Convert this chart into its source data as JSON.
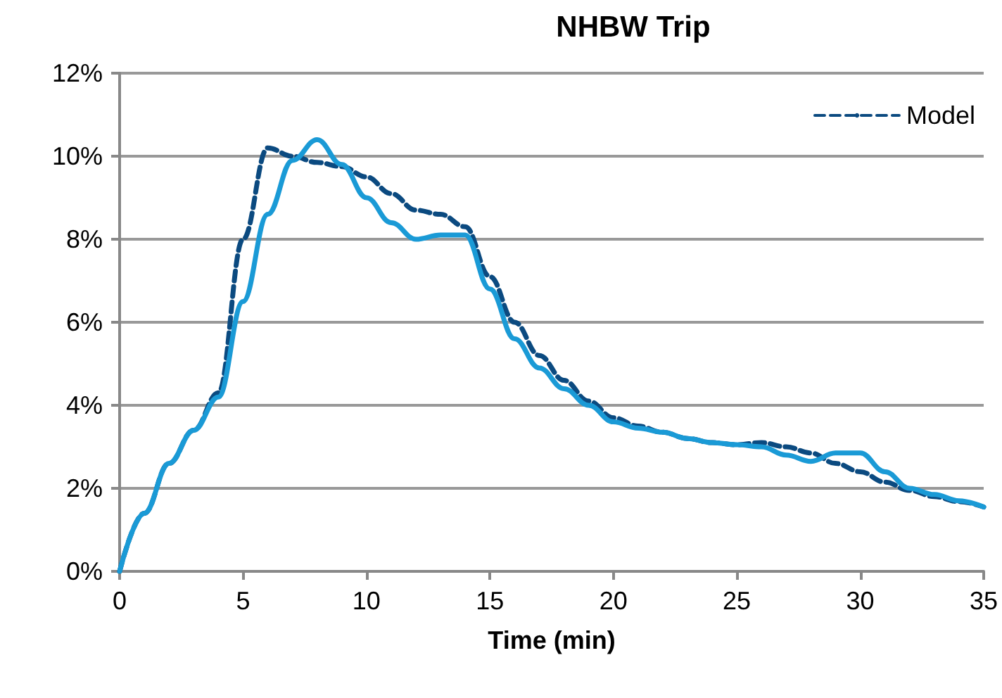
{
  "chart_data": {
    "type": "line",
    "title": "NHBW Trip",
    "xlabel": "Time (min)",
    "x": [
      0,
      1,
      2,
      3,
      4,
      5,
      6,
      7,
      8,
      9,
      10,
      11,
      12,
      13,
      14,
      15,
      16,
      17,
      18,
      19,
      20,
      21,
      22,
      23,
      24,
      25,
      26,
      27,
      28,
      29,
      30,
      31,
      32,
      33,
      34,
      35
    ],
    "series": [
      {
        "color": "#1a9ad6",
        "line_style": "solid",
        "values": [
          0,
          1.4,
          2.6,
          3.4,
          4.2,
          6.5,
          8.6,
          9.9,
          10.4,
          9.8,
          9.0,
          8.4,
          8.0,
          8.1,
          8.1,
          6.8,
          5.6,
          4.9,
          4.4,
          4.0,
          3.6,
          3.45,
          3.35,
          3.2,
          3.1,
          3.05,
          3.0,
          2.8,
          2.65,
          2.85,
          2.85,
          2.4,
          2.0,
          1.85,
          1.7,
          1.55
        ]
      },
      {
        "name": "Model",
        "color": "#0b4a80",
        "line_style": "dashed",
        "values": [
          0,
          1.4,
          2.6,
          3.4,
          4.3,
          8.0,
          10.2,
          10.0,
          9.85,
          9.75,
          9.5,
          9.1,
          8.7,
          8.6,
          8.3,
          7.1,
          6.0,
          5.2,
          4.6,
          4.1,
          3.7,
          3.5,
          3.35,
          3.2,
          3.1,
          3.05,
          3.1,
          3.0,
          2.85,
          2.6,
          2.4,
          2.15,
          1.95,
          1.8,
          1.68,
          1.55
        ]
      }
    ],
    "xlim": [
      0,
      35
    ],
    "xticks": [
      0,
      5,
      10,
      15,
      20,
      25,
      30,
      35
    ],
    "ylim": [
      0,
      12
    ],
    "yticks": [
      {
        "value": 0,
        "label": "0%"
      },
      {
        "value": 2,
        "label": "2%"
      },
      {
        "value": 4,
        "label": "4%"
      },
      {
        "value": 6,
        "label": "6%"
      },
      {
        "value": 8,
        "label": "8%"
      },
      {
        "value": 10,
        "label": "10%"
      },
      {
        "value": 12,
        "label": "12%"
      }
    ],
    "grid": "y",
    "legend": "top right",
    "marker": "none"
  }
}
